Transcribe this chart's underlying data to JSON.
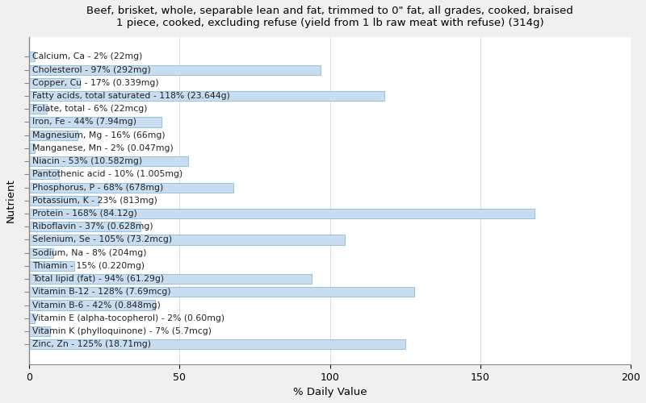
{
  "title": "Beef, brisket, whole, separable lean and fat, trimmed to 0\" fat, all grades, cooked, braised\n1 piece, cooked, excluding refuse (yield from 1 lb raw meat with refuse) (314g)",
  "xlabel": "% Daily Value",
  "ylabel": "Nutrient",
  "xlim": [
    0,
    200
  ],
  "xticks": [
    0,
    50,
    100,
    150,
    200
  ],
  "bar_color": "#c9ddf0",
  "bar_edge_color": "#7aaed6",
  "background_color": "#f0f0f0",
  "plot_bg_color": "#ffffff",
  "nutrients": [
    "Calcium, Ca - 2% (22mg)",
    "Cholesterol - 97% (292mg)",
    "Copper, Cu - 17% (0.339mg)",
    "Fatty acids, total saturated - 118% (23.644g)",
    "Folate, total - 6% (22mcg)",
    "Iron, Fe - 44% (7.94mg)",
    "Magnesium, Mg - 16% (66mg)",
    "Manganese, Mn - 2% (0.047mg)",
    "Niacin - 53% (10.582mg)",
    "Pantothenic acid - 10% (1.005mg)",
    "Phosphorus, P - 68% (678mg)",
    "Potassium, K - 23% (813mg)",
    "Protein - 168% (84.12g)",
    "Riboflavin - 37% (0.628mg)",
    "Selenium, Se - 105% (73.2mcg)",
    "Sodium, Na - 8% (204mg)",
    "Thiamin - 15% (0.220mg)",
    "Total lipid (fat) - 94% (61.29g)",
    "Vitamin B-12 - 128% (7.69mcg)",
    "Vitamin B-6 - 42% (0.848mg)",
    "Vitamin E (alpha-tocopherol) - 2% (0.60mg)",
    "Vitamin K (phylloquinone) - 7% (5.7mcg)",
    "Zinc, Zn - 125% (18.71mg)"
  ],
  "values": [
    2,
    97,
    17,
    118,
    6,
    44,
    16,
    2,
    53,
    10,
    68,
    23,
    168,
    37,
    105,
    8,
    15,
    94,
    128,
    42,
    2,
    7,
    125
  ],
  "title_fontsize": 9.5,
  "axis_label_fontsize": 9.5,
  "tick_fontsize": 9,
  "bar_label_fontsize": 7.8
}
